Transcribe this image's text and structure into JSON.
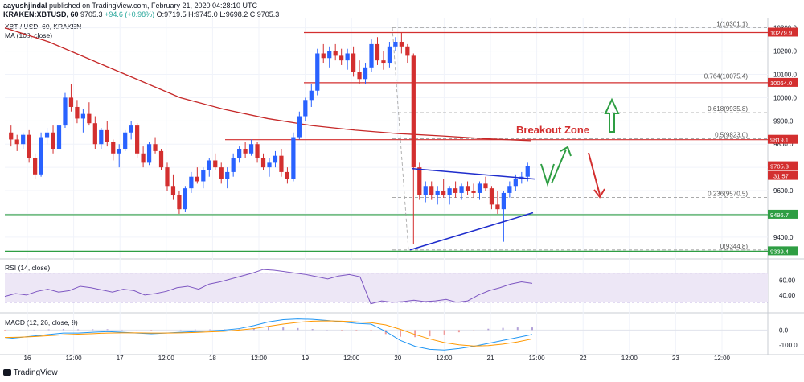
{
  "header": {
    "user": "aayushjindal",
    "published": "published on TradingView.com, February 21, 2020 04:28:10 UTC",
    "symbol": "KRAKEN:XBTUSD, 60",
    "last": "9705.3",
    "change": "+94.6 (+0.98%)",
    "ohlc": "O:9719.5 H:9745.0 L:9698.2 C:9705.3"
  },
  "legends": {
    "price": "XBT / USD, 60, KRAKEN",
    "ma": "MA (100, close)",
    "rsi": "RSI (14, close)",
    "macd": "MACD (12, 26, close, 9)"
  },
  "logo": "TradingView",
  "colors": {
    "up": "#2962ff",
    "down": "#d32f2f",
    "ma": "#c62828",
    "support": "#2e9e43",
    "resistance": "#d32f2f",
    "trendline": "#1e2ccc",
    "rsi": "#7e57c2",
    "macd": "#2196f3",
    "signal": "#ff9800",
    "hist_up": "#b2a1d8",
    "hist_down": "#ef9a9a"
  },
  "chart_data": {
    "type": "candlestick",
    "x_ticks": [
      "16",
      "12:00",
      "17",
      "12:00",
      "18",
      "12:00",
      "19",
      "12:00",
      "20",
      "12:00",
      "21",
      "12:00",
      "22",
      "12:00",
      "23",
      "12:00"
    ],
    "y_ticks": [
      "9400.0",
      "9500.0",
      "9600.0",
      "9700.0",
      "9800.0",
      "9900.0",
      "10000.0",
      "10100.0",
      "10200.0",
      "10300.0"
    ],
    "ylim": [
      9320,
      10330
    ],
    "candles": [
      [
        9850,
        9880,
        9790,
        9820
      ],
      [
        9820,
        9840,
        9770,
        9800
      ],
      [
        9800,
        9850,
        9780,
        9840
      ],
      [
        9840,
        9860,
        9720,
        9740
      ],
      [
        9740,
        9760,
        9650,
        9670
      ],
      [
        9670,
        9850,
        9660,
        9830
      ],
      [
        9830,
        9870,
        9800,
        9850
      ],
      [
        9850,
        9880,
        9760,
        9780
      ],
      [
        9780,
        9900,
        9770,
        9880
      ],
      [
        9880,
        10020,
        9870,
        10000
      ],
      [
        10000,
        10060,
        9940,
        9960
      ],
      [
        9960,
        9990,
        9890,
        9910
      ],
      [
        9910,
        9950,
        9850,
        9930
      ],
      [
        9930,
        9980,
        9880,
        9890
      ],
      [
        9890,
        9920,
        9780,
        9800
      ],
      [
        9800,
        9870,
        9780,
        9860
      ],
      [
        9860,
        9900,
        9790,
        9810
      ],
      [
        9810,
        9820,
        9730,
        9760
      ],
      [
        9760,
        9800,
        9700,
        9780
      ],
      [
        9780,
        9860,
        9770,
        9850
      ],
      [
        9850,
        9900,
        9820,
        9880
      ],
      [
        9880,
        9890,
        9740,
        9760
      ],
      [
        9760,
        9790,
        9700,
        9720
      ],
      [
        9720,
        9810,
        9710,
        9800
      ],
      [
        9800,
        9830,
        9760,
        9770
      ],
      [
        9770,
        9780,
        9690,
        9700
      ],
      [
        9700,
        9720,
        9600,
        9620
      ],
      [
        9620,
        9670,
        9560,
        9580
      ],
      [
        9580,
        9600,
        9500,
        9520
      ],
      [
        9520,
        9620,
        9510,
        9610
      ],
      [
        9610,
        9680,
        9590,
        9660
      ],
      [
        9660,
        9700,
        9630,
        9640
      ],
      [
        9640,
        9700,
        9610,
        9690
      ],
      [
        9690,
        9740,
        9660,
        9730
      ],
      [
        9730,
        9760,
        9690,
        9700
      ],
      [
        9700,
        9720,
        9630,
        9650
      ],
      [
        9650,
        9700,
        9610,
        9680
      ],
      [
        9680,
        9760,
        9660,
        9740
      ],
      [
        9740,
        9790,
        9720,
        9780
      ],
      [
        9780,
        9810,
        9740,
        9760
      ],
      [
        9760,
        9820,
        9750,
        9800
      ],
      [
        9800,
        9810,
        9720,
        9740
      ],
      [
        9740,
        9760,
        9690,
        9700
      ],
      [
        9700,
        9740,
        9660,
        9720
      ],
      [
        9720,
        9770,
        9700,
        9750
      ],
      [
        9750,
        9780,
        9660,
        9680
      ],
      [
        9680,
        9700,
        9630,
        9650
      ],
      [
        9650,
        9850,
        9640,
        9830
      ],
      [
        9830,
        9940,
        9820,
        9920
      ],
      [
        9920,
        10000,
        9900,
        9990
      ],
      [
        9990,
        10060,
        9960,
        10030
      ],
      [
        10030,
        10210,
        10010,
        10190
      ],
      [
        10190,
        10230,
        10150,
        10170
      ],
      [
        10170,
        10220,
        10130,
        10200
      ],
      [
        10200,
        10230,
        10160,
        10180
      ],
      [
        10180,
        10210,
        10140,
        10160
      ],
      [
        10160,
        10210,
        10120,
        10190
      ],
      [
        10190,
        10220,
        10090,
        10110
      ],
      [
        10110,
        10160,
        10060,
        10080
      ],
      [
        10080,
        10150,
        10060,
        10130
      ],
      [
        10130,
        10250,
        10110,
        10230
      ],
      [
        10230,
        10260,
        10140,
        10160
      ],
      [
        10160,
        10200,
        10120,
        10150
      ],
      [
        10150,
        10240,
        10130,
        10220
      ],
      [
        10220,
        10260,
        10200,
        10240
      ],
      [
        10240,
        10280,
        10190,
        10220
      ],
      [
        10220,
        10230,
        10150,
        10180
      ],
      [
        10180,
        10190,
        9370,
        9700
      ],
      [
        9700,
        9720,
        9560,
        9580
      ],
      [
        9580,
        9640,
        9550,
        9620
      ],
      [
        9620,
        9640,
        9560,
        9580
      ],
      [
        9580,
        9620,
        9540,
        9600
      ],
      [
        9600,
        9650,
        9570,
        9580
      ],
      [
        9580,
        9620,
        9540,
        9610
      ],
      [
        9610,
        9640,
        9570,
        9590
      ],
      [
        9590,
        9630,
        9560,
        9620
      ],
      [
        9620,
        9640,
        9580,
        9600
      ],
      [
        9600,
        9630,
        9570,
        9590
      ],
      [
        9590,
        9640,
        9560,
        9630
      ],
      [
        9630,
        9660,
        9600,
        9610
      ],
      [
        9610,
        9620,
        9520,
        9540
      ],
      [
        9540,
        9600,
        9500,
        9520
      ],
      [
        9520,
        9600,
        9380,
        9590
      ],
      [
        9590,
        9640,
        9570,
        9620
      ],
      [
        9620,
        9670,
        9600,
        9650
      ],
      [
        9650,
        9680,
        9630,
        9660
      ],
      [
        9660,
        9720,
        9640,
        9705
      ]
    ],
    "ma100": [
      10300,
      10240,
      10160,
      10080,
      10000,
      9950,
      9910,
      9880,
      9860,
      9845,
      9835,
      9823,
      9815
    ],
    "levels": {
      "resistance_top": 10279.9,
      "resistance_mid": 10064.0,
      "breakout": 9819.1,
      "support_1": 9496.7,
      "support_2": 9339.4,
      "last_price": 9705.3,
      "time_tag": "31:57"
    },
    "fib": [
      {
        "label": "1(10301.1)",
        "v": 10301.1
      },
      {
        "label": "0.764(10075.4)",
        "v": 10075.4
      },
      {
        "label": "0.618(9935.8)",
        "v": 9935.8
      },
      {
        "label": "0.5(9823.0)",
        "v": 9823.0
      },
      {
        "label": "0.236(9570.5)",
        "v": 9570.5
      },
      {
        "label": "0(9344.8)",
        "v": 9344.8
      }
    ],
    "annotation": "Breakout Zone",
    "rsi_ticks": [
      "60.00",
      "40.00"
    ],
    "rsi": [
      38,
      42,
      40,
      45,
      48,
      44,
      46,
      52,
      50,
      47,
      44,
      48,
      46,
      40,
      42,
      45,
      50,
      52,
      48,
      55,
      58,
      62,
      66,
      70,
      75,
      74,
      72,
      70,
      68,
      65,
      62,
      66,
      68,
      65,
      28,
      32,
      30,
      31,
      33,
      31,
      32,
      34,
      30,
      32,
      40,
      46,
      50,
      55,
      58,
      56
    ],
    "macd_ticks": [
      "0.0",
      "-100.0"
    ],
    "macd": [
      -60,
      -50,
      -40,
      -30,
      -20,
      -20,
      -15,
      -10,
      -15,
      -20,
      -25,
      -20,
      -15,
      -10,
      -5,
      0,
      10,
      30,
      55,
      70,
      75,
      72,
      65,
      55,
      45,
      40,
      -10,
      -70,
      -110,
      -130,
      -135,
      -125,
      -110,
      -90,
      -70,
      -50,
      -30
    ],
    "signal": [
      -50,
      -48,
      -44,
      -38,
      -32,
      -28,
      -24,
      -20,
      -19,
      -19,
      -20,
      -20,
      -19,
      -16,
      -12,
      -8,
      0,
      10,
      25,
      40,
      52,
      60,
      62,
      60,
      55,
      50,
      35,
      5,
      -30,
      -60,
      -85,
      -100,
      -108,
      -105,
      -95,
      -80,
      -60
    ]
  }
}
